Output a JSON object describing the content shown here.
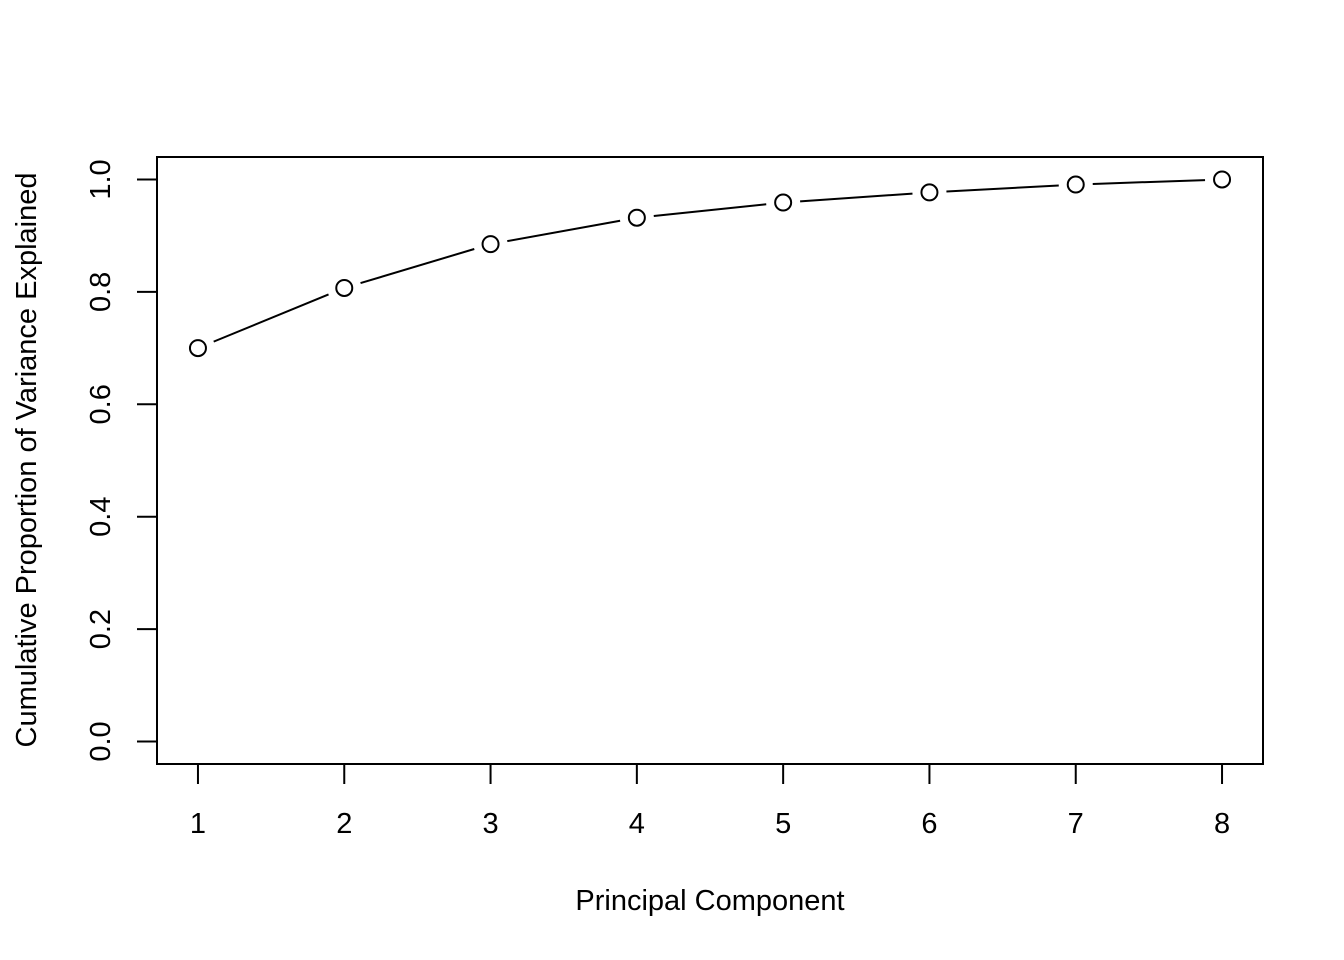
{
  "chart_data": {
    "type": "line",
    "title": "",
    "xlabel": "Principal Component",
    "ylabel": "Cumulative Proportion of Variance Explained",
    "x": [
      1,
      2,
      3,
      4,
      5,
      6,
      7,
      8
    ],
    "y": [
      0.7,
      0.807,
      0.885,
      0.932,
      0.959,
      0.977,
      0.991,
      1.0
    ],
    "xlim": [
      0.72,
      8.28
    ],
    "ylim": [
      -0.04,
      1.04
    ],
    "x_ticks": [
      1,
      2,
      3,
      4,
      5,
      6,
      7,
      8
    ],
    "x_tick_labels": [
      "1",
      "2",
      "3",
      "4",
      "5",
      "6",
      "7",
      "8"
    ],
    "y_ticks": [
      0.0,
      0.2,
      0.4,
      0.6,
      0.8,
      1.0
    ],
    "y_tick_labels": [
      "0.0",
      "0.2",
      "0.4",
      "0.6",
      "0.8",
      "1.0"
    ],
    "marker": "open-circle",
    "grid": false,
    "legend": "none",
    "line_color": "#000000",
    "background": "#ffffff"
  }
}
